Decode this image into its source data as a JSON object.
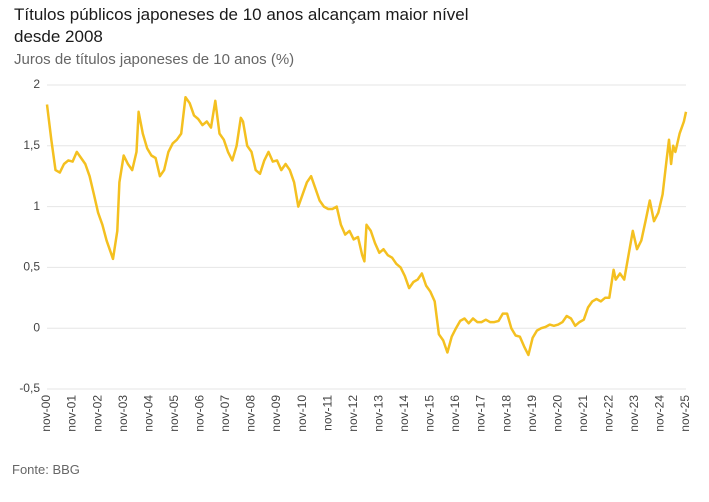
{
  "chart_data": {
    "type": "line",
    "title": [
      "Títulos públicos japoneses de 10 anos alcançam maior nível",
      "desde 2008"
    ],
    "subtitle": "Juros de títulos japoneses de 10 anos (%)",
    "source": "Fonte: BBG",
    "color": "#f4c020",
    "grid": true,
    "ylim": [
      -0.5,
      2
    ],
    "yticks": [
      {
        "value": -0.5,
        "label": "-0,5"
      },
      0,
      {
        "value": 0.5,
        "label": "0,5"
      },
      1,
      {
        "value": 1.5,
        "label": "1,5"
      },
      2
    ],
    "xlim": [
      "2000-11",
      "2025-11"
    ],
    "xticks": [
      {
        "value": "2000-11",
        "label": "nov-00"
      },
      {
        "value": "2001-11",
        "label": "nov-01"
      },
      {
        "value": "2002-11",
        "label": "nov-02"
      },
      {
        "value": "2003-11",
        "label": "nov-03"
      },
      {
        "value": "2004-11",
        "label": "nov-04"
      },
      {
        "value": "2005-11",
        "label": "nov-05"
      },
      {
        "value": "2006-11",
        "label": "nov-06"
      },
      {
        "value": "2007-11",
        "label": "nov-07"
      },
      {
        "value": "2008-11",
        "label": "nov-08"
      },
      {
        "value": "2009-11",
        "label": "nov-09"
      },
      {
        "value": "2010-11",
        "label": "nov-10"
      },
      {
        "value": "2011-11",
        "label": "nov-11"
      },
      {
        "value": "2012-11",
        "label": "nov-12"
      },
      {
        "value": "2013-11",
        "label": "nov-13"
      },
      {
        "value": "2014-11",
        "label": "nov-14"
      },
      {
        "value": "2015-11",
        "label": "nov-15"
      },
      {
        "value": "2016-11",
        "label": "nov-16"
      },
      {
        "value": "2017-11",
        "label": "nov-17"
      },
      {
        "value": "2018-11",
        "label": "nov-18"
      },
      {
        "value": "2019-11",
        "label": "nov-19"
      },
      {
        "value": "2020-11",
        "label": "nov-20"
      },
      {
        "value": "2021-11",
        "label": "nov-21"
      },
      {
        "value": "2022-11",
        "label": "nov-22"
      },
      {
        "value": "2023-11",
        "label": "nov-23"
      },
      {
        "value": "2024-11",
        "label": "nov-24"
      },
      {
        "value": "2025-11",
        "label": "nov-25"
      }
    ],
    "x": [
      "2000-11",
      "2001-01",
      "2001-03",
      "2001-05",
      "2001-07",
      "2001-09",
      "2001-11",
      "2002-01",
      "2002-03",
      "2002-05",
      "2002-07",
      "2002-09",
      "2002-11",
      "2003-01",
      "2003-03",
      "2003-06",
      "2003-08",
      "2003-09",
      "2003-11",
      "2004-01",
      "2004-03",
      "2004-05",
      "2004-06",
      "2004-08",
      "2004-10",
      "2004-12",
      "2005-02",
      "2005-04",
      "2005-06",
      "2005-08",
      "2005-10",
      "2005-12",
      "2006-02",
      "2006-04",
      "2006-06",
      "2006-08",
      "2006-10",
      "2006-12",
      "2007-02",
      "2007-04",
      "2007-06",
      "2007-08",
      "2007-10",
      "2007-12",
      "2008-02",
      "2008-04",
      "2008-06",
      "2008-07",
      "2008-09",
      "2008-11",
      "2009-01",
      "2009-03",
      "2009-05",
      "2009-07",
      "2009-09",
      "2009-11",
      "2010-01",
      "2010-03",
      "2010-05",
      "2010-07",
      "2010-09",
      "2010-11",
      "2011-01",
      "2011-03",
      "2011-05",
      "2011-07",
      "2011-09",
      "2011-11",
      "2012-01",
      "2012-03",
      "2012-05",
      "2012-07",
      "2012-09",
      "2012-11",
      "2013-01",
      "2013-03",
      "2013-04",
      "2013-05",
      "2013-07",
      "2013-09",
      "2013-11",
      "2014-01",
      "2014-03",
      "2014-05",
      "2014-07",
      "2014-09",
      "2014-11",
      "2015-01",
      "2015-03",
      "2015-05",
      "2015-07",
      "2015-09",
      "2015-11",
      "2016-01",
      "2016-03",
      "2016-05",
      "2016-07",
      "2016-09",
      "2016-11",
      "2017-01",
      "2017-03",
      "2017-05",
      "2017-07",
      "2017-09",
      "2017-11",
      "2018-01",
      "2018-03",
      "2018-05",
      "2018-07",
      "2018-09",
      "2018-11",
      "2019-01",
      "2019-03",
      "2019-05",
      "2019-07",
      "2019-09",
      "2019-11",
      "2020-01",
      "2020-03",
      "2020-05",
      "2020-07",
      "2020-09",
      "2020-11",
      "2021-01",
      "2021-03",
      "2021-05",
      "2021-07",
      "2021-09",
      "2021-11",
      "2022-01",
      "2022-03",
      "2022-05",
      "2022-07",
      "2022-09",
      "2022-11",
      "2023-01",
      "2023-02",
      "2023-04",
      "2023-06",
      "2023-08",
      "2023-10",
      "2023-12",
      "2024-02",
      "2024-04",
      "2024-06",
      "2024-08",
      "2024-10",
      "2024-12",
      "2025-02",
      "2025-03",
      "2025-04",
      "2025-05",
      "2025-06",
      "2025-08",
      "2025-10",
      "2025-11"
    ],
    "values": [
      1.84,
      1.55,
      1.3,
      1.28,
      1.35,
      1.38,
      1.37,
      1.45,
      1.4,
      1.35,
      1.25,
      1.1,
      0.95,
      0.85,
      0.72,
      0.57,
      0.8,
      1.2,
      1.42,
      1.35,
      1.3,
      1.45,
      1.78,
      1.6,
      1.48,
      1.42,
      1.4,
      1.25,
      1.3,
      1.45,
      1.52,
      1.55,
      1.6,
      1.9,
      1.85,
      1.75,
      1.72,
      1.67,
      1.7,
      1.65,
      1.87,
      1.6,
      1.55,
      1.45,
      1.38,
      1.5,
      1.73,
      1.7,
      1.5,
      1.45,
      1.3,
      1.27,
      1.38,
      1.45,
      1.37,
      1.38,
      1.3,
      1.35,
      1.3,
      1.2,
      1.0,
      1.1,
      1.2,
      1.25,
      1.15,
      1.05,
      1.0,
      0.98,
      0.98,
      1.0,
      0.85,
      0.77,
      0.8,
      0.73,
      0.75,
      0.6,
      0.55,
      0.85,
      0.8,
      0.7,
      0.62,
      0.65,
      0.6,
      0.58,
      0.53,
      0.5,
      0.43,
      0.33,
      0.38,
      0.4,
      0.45,
      0.35,
      0.3,
      0.22,
      -0.05,
      -0.1,
      -0.2,
      -0.07,
      0.0,
      0.06,
      0.08,
      0.04,
      0.08,
      0.05,
      0.05,
      0.07,
      0.05,
      0.05,
      0.06,
      0.12,
      0.12,
      0.0,
      -0.06,
      -0.07,
      -0.15,
      -0.22,
      -0.08,
      -0.02,
      0.0,
      0.01,
      0.03,
      0.02,
      0.03,
      0.05,
      0.1,
      0.08,
      0.02,
      0.05,
      0.07,
      0.17,
      0.22,
      0.24,
      0.22,
      0.25,
      0.25,
      0.48,
      0.4,
      0.45,
      0.4,
      0.6,
      0.8,
      0.65,
      0.72,
      0.88,
      1.05,
      0.88,
      0.95,
      1.1,
      1.4,
      1.55,
      1.35,
      1.5,
      1.45,
      1.6,
      1.7,
      1.78
    ]
  }
}
